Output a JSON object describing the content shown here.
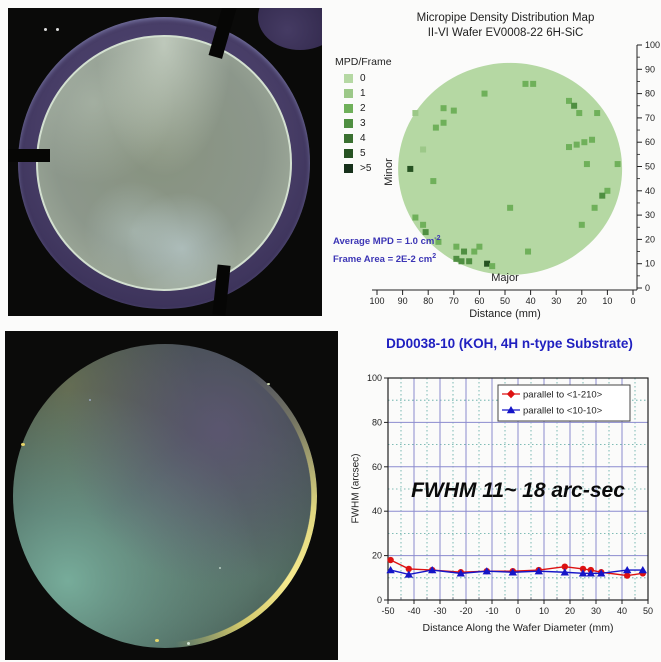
{
  "mpd": {
    "title_line1": "Micropipe Density Distribution Map",
    "title_line2": "II-VI Wafer EV0008-22 6H-SiC",
    "legend_title": "MPD/Frame",
    "legend_items": [
      {
        "label": "0",
        "color": "#b5d8a3"
      },
      {
        "label": "1",
        "color": "#9cc888"
      },
      {
        "label": "2",
        "color": "#6fb05a"
      },
      {
        "label": "3",
        "color": "#4f8f41"
      },
      {
        "label": "4",
        "color": "#3a7030"
      },
      {
        "label": "5",
        "color": "#265222"
      },
      {
        "label": ">5",
        "color": "#16301a"
      }
    ],
    "minor_label": "Minor",
    "major_label": "Major",
    "xlabel": "Distance (mm)",
    "annotation1_text": "Average MPD = 1.0 cm",
    "annotation1_sup": "-2",
    "annotation2_text": "Frame Area = 2E-2 cm",
    "annotation2_sup": "2"
  },
  "fwhm": {
    "title": "DD0038-10 (KOH, 4H n-type Substrate)",
    "ylabel": "FWHM (arcsec)",
    "xlabel": "Distance Along the Wafer Diameter (mm)",
    "annotation": "FWHM 11~ 18 arc-sec"
  },
  "chart_data": [
    {
      "type": "scatter",
      "title": "Micropipe Density Distribution Map — II-VI Wafer EV0008-22 6H-SiC",
      "xlabel": "Distance (mm)",
      "x_axis_reversed": true,
      "x_ticks": [
        100,
        90,
        80,
        70,
        60,
        50,
        40,
        30,
        20,
        10,
        0
      ],
      "y_ticks": [
        0,
        10,
        20,
        30,
        40,
        50,
        60,
        70,
        80,
        90,
        100
      ],
      "legend_title": "MPD/Frame",
      "legend_levels": [
        "0",
        "1",
        "2",
        "3",
        "4",
        "5",
        ">5"
      ],
      "annotations": [
        "Average MPD = 1.0 cm-2",
        "Frame Area = 2E-2 cm2",
        "Minor",
        "Major"
      ],
      "wafer": {
        "center_x": 48,
        "center_y": 49,
        "radius": 44
      },
      "points": [
        {
          "x": 42,
          "y": 84,
          "level": 2
        },
        {
          "x": 39,
          "y": 84,
          "level": 2
        },
        {
          "x": 58,
          "y": 80,
          "level": 2
        },
        {
          "x": 74,
          "y": 74,
          "level": 2
        },
        {
          "x": 70,
          "y": 73,
          "level": 2
        },
        {
          "x": 25,
          "y": 77,
          "level": 2
        },
        {
          "x": 23,
          "y": 75,
          "level": 3
        },
        {
          "x": 21,
          "y": 72,
          "level": 2
        },
        {
          "x": 14,
          "y": 72,
          "level": 2
        },
        {
          "x": 74,
          "y": 68,
          "level": 2
        },
        {
          "x": 77,
          "y": 66,
          "level": 2
        },
        {
          "x": 85,
          "y": 72,
          "level": 1
        },
        {
          "x": 22,
          "y": 59,
          "level": 2
        },
        {
          "x": 19,
          "y": 60,
          "level": 2
        },
        {
          "x": 16,
          "y": 61,
          "level": 2
        },
        {
          "x": 25,
          "y": 58,
          "level": 2
        },
        {
          "x": 18,
          "y": 51,
          "level": 2
        },
        {
          "x": 6,
          "y": 51,
          "level": 2
        },
        {
          "x": 87,
          "y": 49,
          "level": 5
        },
        {
          "x": 82,
          "y": 57,
          "level": 1
        },
        {
          "x": 78,
          "y": 44,
          "level": 2
        },
        {
          "x": 10,
          "y": 40,
          "level": 2
        },
        {
          "x": 12,
          "y": 38,
          "level": 3
        },
        {
          "x": 15,
          "y": 33,
          "level": 2
        },
        {
          "x": 48,
          "y": 33,
          "level": 2
        },
        {
          "x": 20,
          "y": 26,
          "level": 2
        },
        {
          "x": 85,
          "y": 29,
          "level": 2
        },
        {
          "x": 82,
          "y": 26,
          "level": 2
        },
        {
          "x": 81,
          "y": 23,
          "level": 3
        },
        {
          "x": 76,
          "y": 19,
          "level": 2
        },
        {
          "x": 69,
          "y": 17,
          "level": 2
        },
        {
          "x": 66,
          "y": 15,
          "level": 3
        },
        {
          "x": 62,
          "y": 15,
          "level": 2
        },
        {
          "x": 60,
          "y": 17,
          "level": 2
        },
        {
          "x": 69,
          "y": 12,
          "level": 3
        },
        {
          "x": 67,
          "y": 11,
          "level": 3
        },
        {
          "x": 64,
          "y": 11,
          "level": 3
        },
        {
          "x": 57,
          "y": 10,
          "level": 5
        },
        {
          "x": 55,
          "y": 9,
          "level": 2
        },
        {
          "x": 41,
          "y": 15,
          "level": 2
        }
      ]
    },
    {
      "type": "line",
      "title": "DD0038-10 (KOH, 4H n-type Substrate)",
      "xlabel": "Distance Along the Wafer Diameter (mm)",
      "ylabel": "FWHM (arcsec)",
      "xlim": [
        -50,
        50
      ],
      "ylim": [
        0,
        100
      ],
      "x_ticks": [
        -50,
        -40,
        -30,
        -20,
        -10,
        0,
        10,
        20,
        30,
        40,
        50
      ],
      "y_ticks": [
        0,
        20,
        40,
        60,
        80,
        100
      ],
      "grid": true,
      "legend_position": "top-right",
      "annotation": "FWHM 11~ 18 arc-sec",
      "x": [
        -49,
        -42,
        -33,
        -22,
        -12,
        -2,
        8,
        18,
        25,
        28,
        32,
        42,
        48
      ],
      "series": [
        {
          "name": "parallel to <1-210>",
          "color": "#dd1111",
          "marker": "diamond",
          "values": [
            18,
            14,
            13.5,
            12.5,
            13,
            13,
            13.5,
            15,
            14,
            13.5,
            12.5,
            11,
            12
          ]
        },
        {
          "name": "parallel to <10-10>",
          "color": "#1515c8",
          "marker": "triangle",
          "values": [
            13.5,
            11.5,
            13.5,
            12,
            13,
            12.5,
            13,
            12.5,
            12,
            12,
            12,
            13.5,
            13.5
          ]
        }
      ]
    }
  ],
  "colors": {
    "map_base_green": "#b5d8a3",
    "grid_major": "#8b8bcf",
    "grid_minor": "#58a8a0",
    "title_blue": "#2020c0",
    "annotation_blue": "#3c35b5"
  }
}
